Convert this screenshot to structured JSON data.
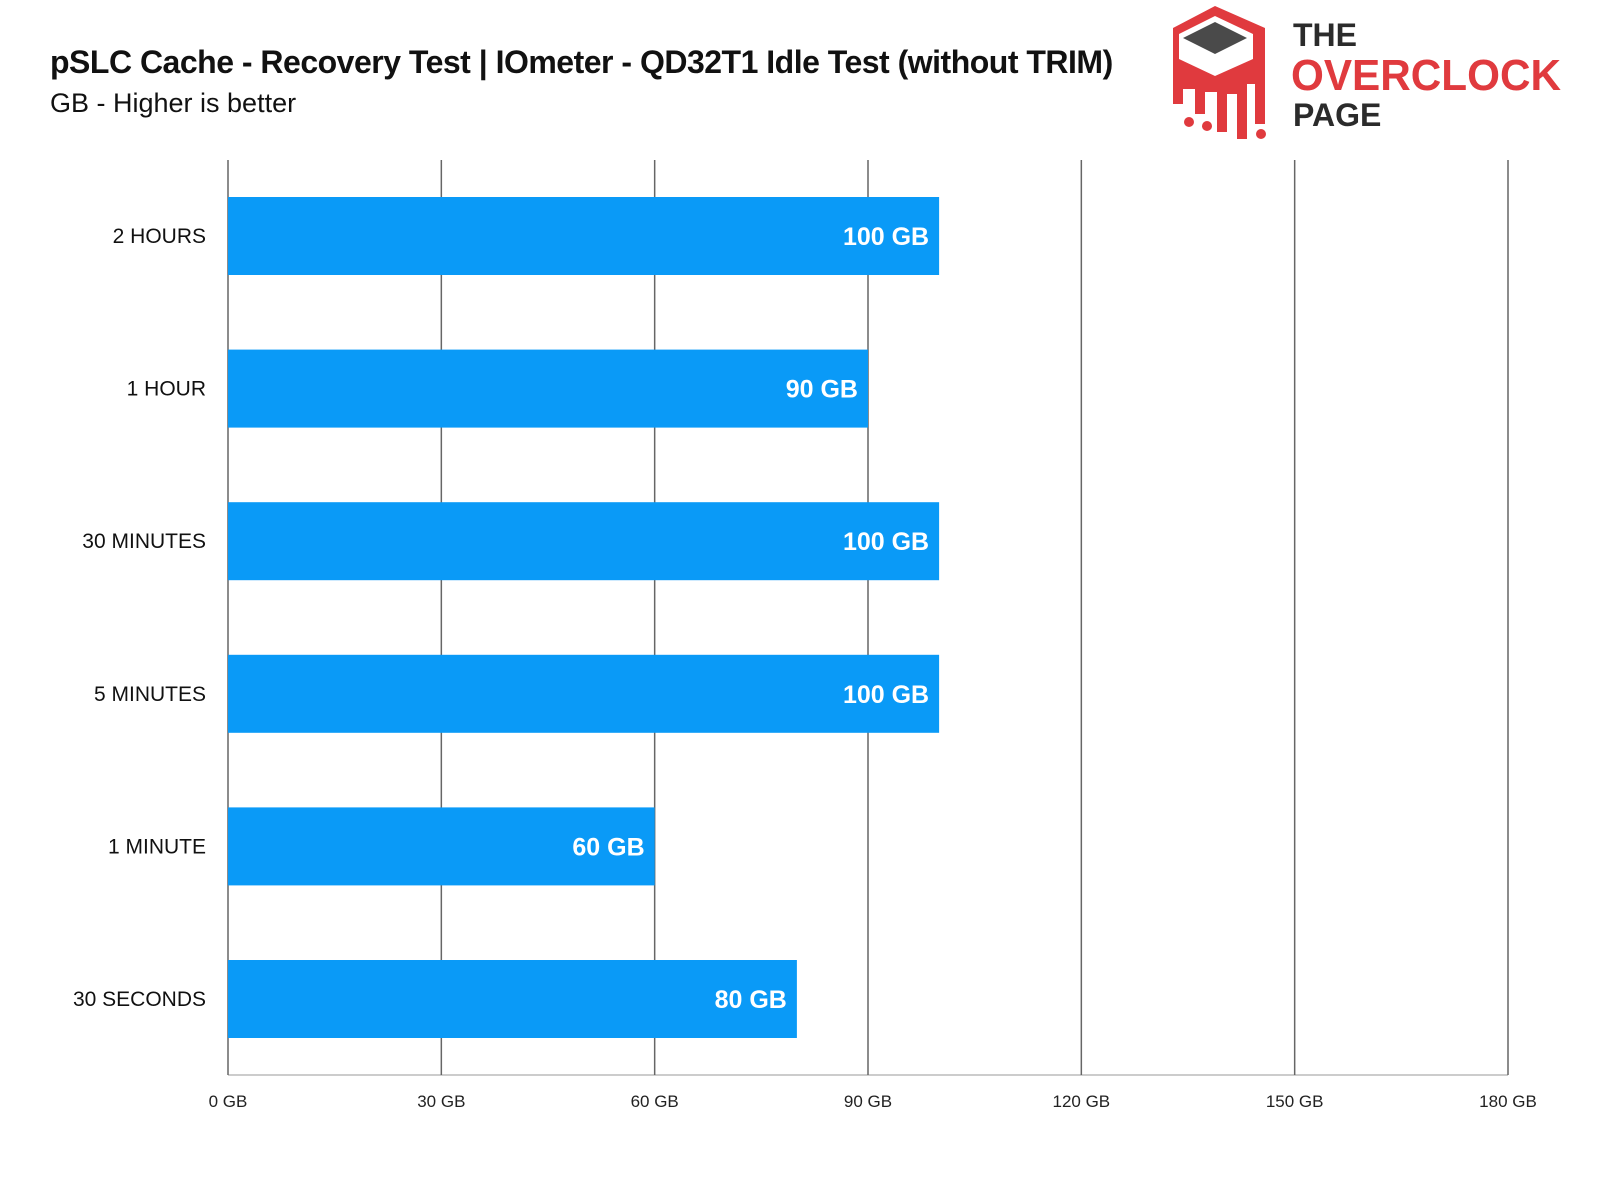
{
  "chart_data": {
    "type": "bar",
    "orientation": "horizontal",
    "title": "pSLC Cache - Recovery Test | IOmeter - QD32T1 Idle Test (without TRIM)",
    "subtitle": "GB - Higher is better",
    "categories": [
      "2 HOURS",
      "1 HOUR",
      "30 MINUTES",
      "5 MINUTES",
      "1 MINUTE",
      "30 SECONDS"
    ],
    "values": [
      100,
      90,
      100,
      100,
      60,
      80
    ],
    "data_labels": [
      "100 GB",
      "90 GB",
      "100 GB",
      "100 GB",
      "60 GB",
      "80 GB"
    ],
    "xlim": [
      0,
      180
    ],
    "xticks": [
      0,
      30,
      60,
      90,
      120,
      150,
      180
    ],
    "xtick_labels": [
      "0 GB",
      "30 GB",
      "60 GB",
      "90 GB",
      "120 GB",
      "150 GB",
      "180 GB"
    ],
    "xlabel": "",
    "ylabel": "",
    "grid": true,
    "bar_color": "#0a9af7"
  },
  "logo": {
    "line1": "THE",
    "line2": "OVERCLOCK",
    "line3": "PAGE",
    "color": "#e03a3e"
  }
}
